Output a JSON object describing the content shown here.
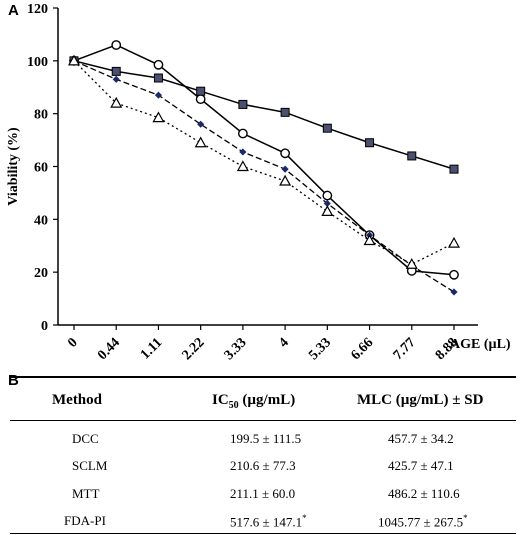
{
  "panel_a_label": "A",
  "panel_b_label": "B",
  "chart_data": {
    "type": "line",
    "xlabel": "AGE (µL)",
    "ylabel": "Viability (%)",
    "categories": [
      "0",
      "0.44",
      "1.11",
      "2.22",
      "3.33",
      "4",
      "5.33",
      "6.66",
      "7.77",
      "8.88"
    ],
    "ylim": [
      0,
      120
    ],
    "yticks": [
      "0",
      "20",
      "40",
      "60",
      "80",
      "100",
      "120"
    ],
    "grid": false,
    "legend": "none",
    "series": [
      {
        "marker": "circle",
        "line": "solid",
        "values": [
          100,
          106,
          98.5,
          85.5,
          72.5,
          65,
          49,
          34,
          20.5,
          19
        ]
      },
      {
        "marker": "square",
        "line": "solid",
        "values": [
          100,
          96,
          93.5,
          88.5,
          83.5,
          80.5,
          74.5,
          69,
          64,
          59
        ]
      },
      {
        "marker": "diamond",
        "line": "dashed",
        "values": [
          100,
          93,
          87,
          76,
          65.5,
          59,
          46,
          34,
          22.5,
          12.5
        ]
      },
      {
        "marker": "triangle",
        "line": "dotted",
        "values": [
          100,
          84,
          78.5,
          69,
          60,
          54.5,
          43,
          32,
          23,
          31
        ]
      }
    ]
  },
  "table": {
    "headers": {
      "method": "Method",
      "ic50_pre": "IC",
      "ic50_sub": "50",
      "ic50_post": " (µg/mL)",
      "mlc": "MLC (µg/mL) ± SD"
    },
    "rows": [
      {
        "method": "DCC",
        "ic50": "199.5 ± 111.5",
        "mlc": "457.7 ± 34.2",
        "ic50_star": "",
        "mlc_star": ""
      },
      {
        "method": "SCLM",
        "ic50": "210.6 ± 77.3",
        "mlc": "425.7 ± 47.1",
        "ic50_star": "",
        "mlc_star": ""
      },
      {
        "method": "MTT",
        "ic50": "211.1 ± 60.0",
        "mlc": "486.2 ± 110.6",
        "ic50_star": "",
        "mlc_star": ""
      },
      {
        "method": "FDA-PI",
        "ic50": "517.6 ± 147.1",
        "mlc": "1045.77 ± 267.5",
        "ic50_star": "*",
        "mlc_star": "*"
      }
    ]
  }
}
